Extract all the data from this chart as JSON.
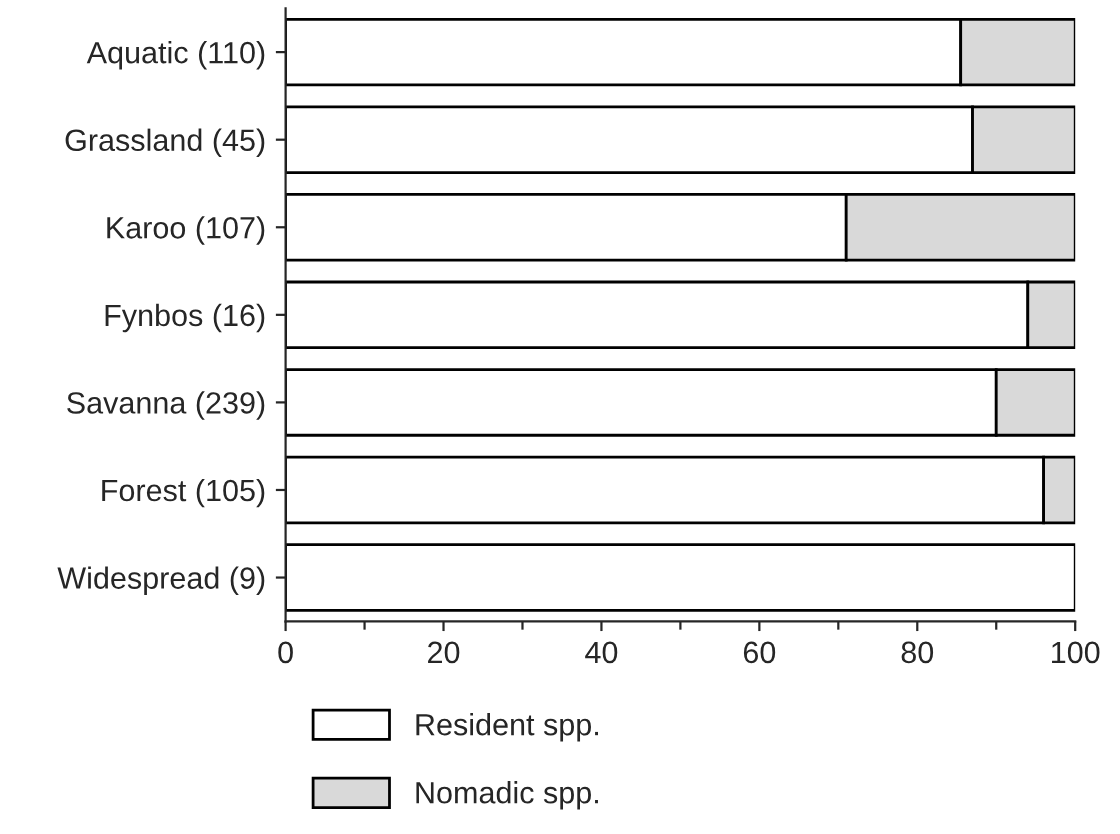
{
  "chart_data": {
    "type": "bar",
    "orientation": "horizontal",
    "stacked": true,
    "categories": [
      "Aquatic (110)",
      "Grassland (45)",
      "Karoo (107)",
      "Fynbos (16)",
      "Savanna (239)",
      "Forest (105)",
      "Widespread (9)"
    ],
    "series": [
      {
        "name": "Resident spp.",
        "color": "#ffffff",
        "values": [
          85.5,
          87,
          71,
          94,
          90,
          96,
          100
        ]
      },
      {
        "name": "Nomadic spp.",
        "color": "#d9d9d9",
        "values": [
          14.5,
          13,
          29,
          6,
          10,
          4,
          null
        ]
      }
    ],
    "xlim": [
      0,
      100
    ],
    "xticks": [
      0,
      {
        "value": 10,
        "label": null
      },
      20,
      {
        "value": 30,
        "label": null
      },
      40,
      {
        "value": 50,
        "label": null
      },
      60,
      {
        "value": 70,
        "label": null
      },
      80,
      {
        "value": 90,
        "label": null
      },
      100
    ],
    "grid": false,
    "legend": "bottom"
  }
}
